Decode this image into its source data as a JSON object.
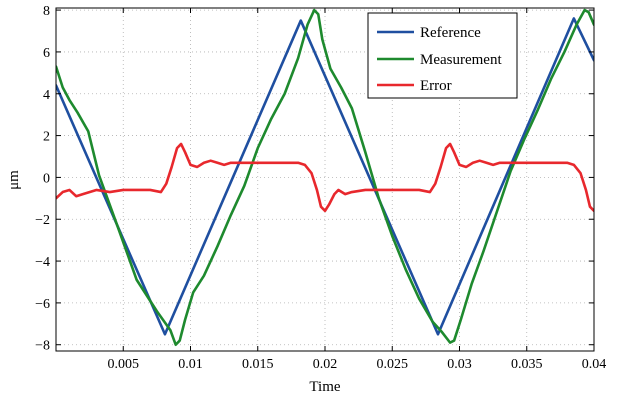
{
  "chart_data": {
    "type": "line",
    "title": "",
    "xlabel": "Time",
    "ylabel": "μm",
    "xlim": [
      0,
      0.04
    ],
    "ylim": [
      -8.3,
      8.1
    ],
    "grid": true,
    "legend_position": "top-right",
    "x_ticks": [
      0.005,
      0.01,
      0.015,
      0.02,
      0.025,
      0.03,
      0.035,
      0.04
    ],
    "x_tick_labels": [
      "0.005",
      "0.01",
      "0.015",
      "0.02",
      "0.025",
      "0.03",
      "0.035",
      "0.04"
    ],
    "y_ticks": [
      8,
      6,
      4,
      2,
      0,
      -2,
      -4,
      -6,
      -8
    ],
    "y_tick_labels": [
      "8",
      "6",
      "4",
      "2",
      "0",
      "−2",
      "−4",
      "−6",
      "−8"
    ],
    "series": [
      {
        "name": "Reference",
        "color": "#1f4fa0",
        "x": [
          0,
          0.0081,
          0.0182,
          0.0284,
          0.0385,
          0.04
        ],
        "y": [
          4.4,
          -7.5,
          7.5,
          -7.5,
          7.6,
          5.6
        ]
      },
      {
        "name": "Measurement",
        "color": "#1e8a2e",
        "x": [
          0,
          0.0005,
          0.001,
          0.0016,
          0.0024,
          0.0032,
          0.0045,
          0.006,
          0.0075,
          0.0085,
          0.0089,
          0.0092,
          0.0096,
          0.0102,
          0.011,
          0.012,
          0.013,
          0.014,
          0.015,
          0.016,
          0.017,
          0.018,
          0.0187,
          0.0192,
          0.0195,
          0.0198,
          0.0204,
          0.0212,
          0.022,
          0.023,
          0.024,
          0.025,
          0.026,
          0.027,
          0.028,
          0.0287,
          0.0293,
          0.0296,
          0.0301,
          0.0309,
          0.0318,
          0.0328,
          0.0338,
          0.0348,
          0.0358,
          0.0368,
          0.0378,
          0.0387,
          0.0393,
          0.0396,
          0.04
        ],
        "y": [
          5.3,
          4.3,
          3.7,
          3.1,
          2.2,
          0.1,
          -2.2,
          -4.9,
          -6.4,
          -7.3,
          -8.0,
          -7.8,
          -6.8,
          -5.5,
          -4.7,
          -3.3,
          -1.8,
          -0.4,
          1.4,
          2.8,
          4.0,
          5.7,
          7.3,
          8.0,
          7.8,
          6.6,
          5.2,
          4.3,
          3.3,
          1.2,
          -1.0,
          -2.8,
          -4.4,
          -5.8,
          -6.9,
          -7.4,
          -7.9,
          -7.8,
          -6.8,
          -5.1,
          -3.5,
          -1.6,
          0.3,
          1.8,
          3.2,
          4.7,
          6.0,
          7.3,
          8.0,
          7.9,
          7.3
        ]
      },
      {
        "name": "Error",
        "color": "#e8282d",
        "x": [
          0,
          0.0005,
          0.001,
          0.0015,
          0.002,
          0.003,
          0.004,
          0.005,
          0.006,
          0.007,
          0.0078,
          0.0082,
          0.0086,
          0.009,
          0.0093,
          0.0096,
          0.01,
          0.0105,
          0.011,
          0.0115,
          0.012,
          0.0125,
          0.013,
          0.014,
          0.015,
          0.016,
          0.017,
          0.018,
          0.0185,
          0.019,
          0.0194,
          0.0197,
          0.02,
          0.0203,
          0.0207,
          0.021,
          0.0215,
          0.022,
          0.023,
          0.024,
          0.025,
          0.026,
          0.027,
          0.0278,
          0.0282,
          0.0286,
          0.029,
          0.0293,
          0.0296,
          0.03,
          0.0305,
          0.031,
          0.0315,
          0.032,
          0.0325,
          0.033,
          0.034,
          0.035,
          0.036,
          0.037,
          0.038,
          0.0385,
          0.039,
          0.0394,
          0.0397,
          0.04
        ],
        "y": [
          -1.0,
          -0.7,
          -0.6,
          -0.9,
          -0.8,
          -0.6,
          -0.7,
          -0.6,
          -0.6,
          -0.6,
          -0.7,
          -0.3,
          0.5,
          1.4,
          1.6,
          1.2,
          0.6,
          0.5,
          0.7,
          0.8,
          0.7,
          0.6,
          0.7,
          0.7,
          0.7,
          0.7,
          0.7,
          0.7,
          0.6,
          0.2,
          -0.6,
          -1.4,
          -1.6,
          -1.3,
          -0.8,
          -0.6,
          -0.8,
          -0.7,
          -0.6,
          -0.6,
          -0.6,
          -0.6,
          -0.6,
          -0.7,
          -0.3,
          0.5,
          1.4,
          1.6,
          1.2,
          0.6,
          0.5,
          0.7,
          0.8,
          0.7,
          0.6,
          0.7,
          0.7,
          0.7,
          0.7,
          0.7,
          0.7,
          0.6,
          0.2,
          -0.6,
          -1.4,
          -1.6
        ]
      }
    ]
  }
}
